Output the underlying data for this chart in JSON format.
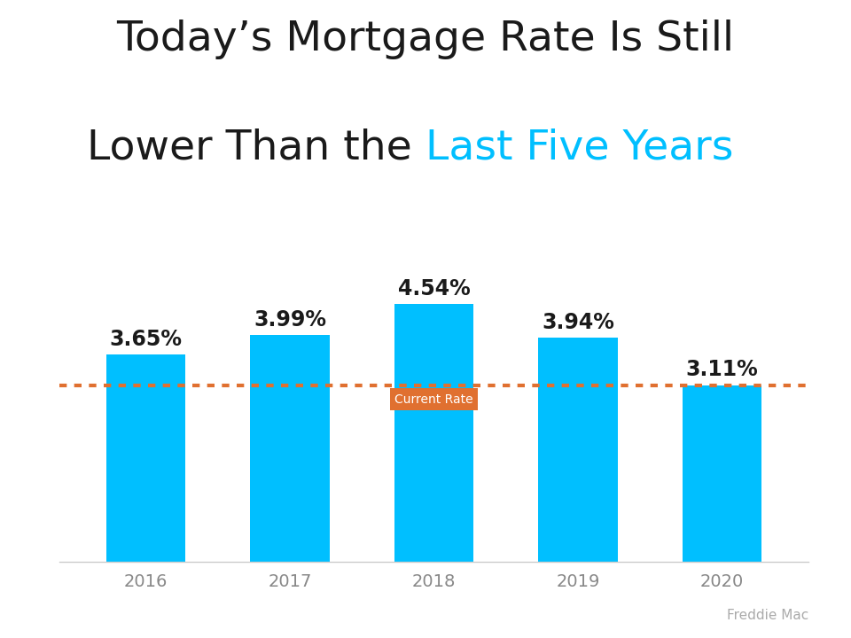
{
  "categories": [
    "2016",
    "2017",
    "2018",
    "2019",
    "2020"
  ],
  "values": [
    3.65,
    3.99,
    4.54,
    3.94,
    3.11
  ],
  "bar_color": "#00BFFF",
  "current_rate": 3.11,
  "dotted_line_y": 3.11,
  "dotted_line_color": "#E07030",
  "title_line1": "Today’s Mortgage Rate Is Still",
  "title_line2_black": "Lower Than the ",
  "title_line2_blue": "Last Five Years",
  "title_color_black": "#1a1a1a",
  "title_color_blue": "#00BFFF",
  "label_color": "#1a1a1a",
  "tick_label_color": "#888888",
  "source_text": "Freddie Mac",
  "source_color": "#aaaaaa",
  "current_rate_label": "Current Rate",
  "current_rate_box_color": "#E07030",
  "current_rate_text_color": "#ffffff",
  "background_color": "#ffffff",
  "bar_width": 0.55,
  "ylim": [
    0,
    5.4
  ],
  "title_fontsize": 34,
  "label_fontsize": 17,
  "tick_fontsize": 14
}
